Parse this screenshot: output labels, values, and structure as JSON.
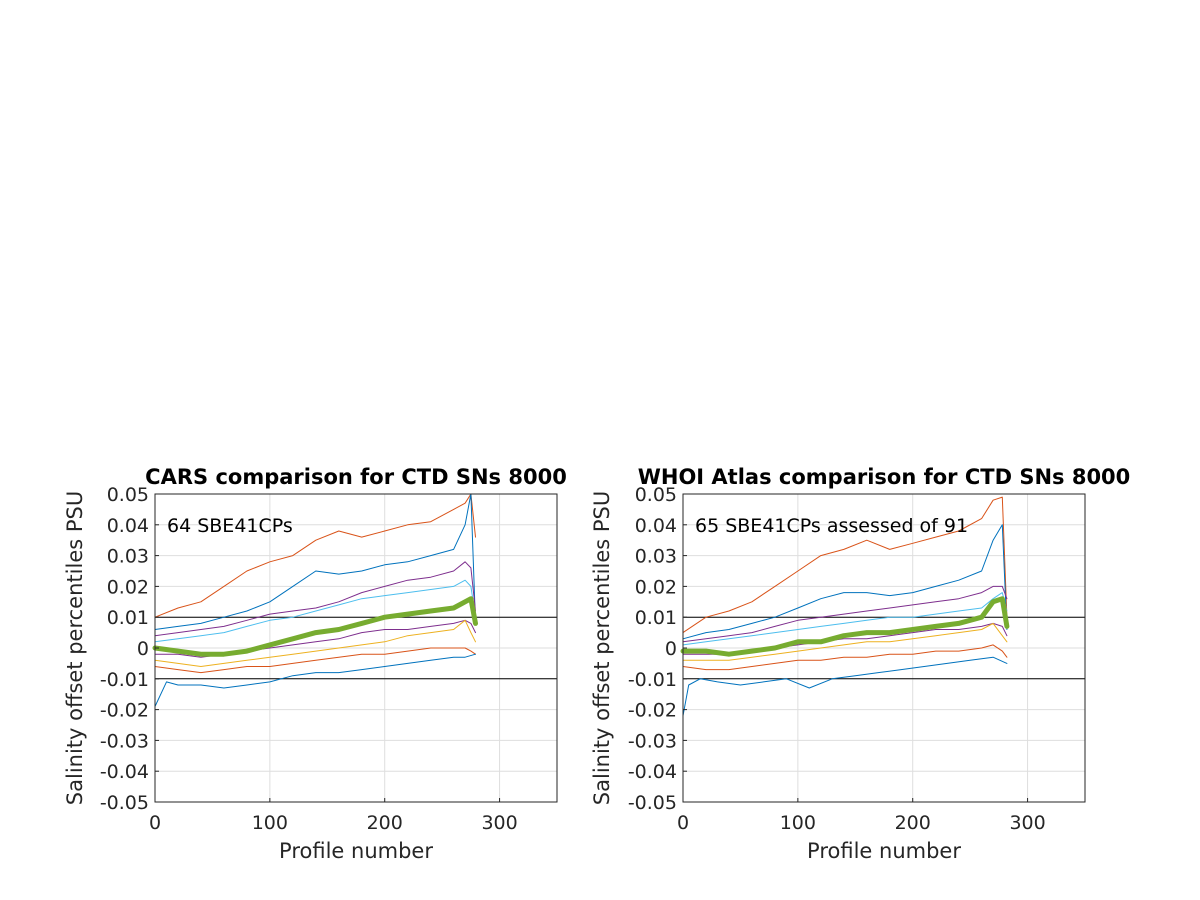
{
  "chart_data": [
    {
      "type": "line",
      "title": "CARS comparison for CTD SNs 8000",
      "annotation": "64 SBE41CPs",
      "xlabel": "Profile number",
      "ylabel": "Salinity offset percentiles PSU",
      "xlim": [
        0,
        350
      ],
      "ylim": [
        -0.05,
        0.05
      ],
      "xticks": [
        0,
        100,
        200,
        300
      ],
      "xtick_labels": [
        "0",
        "100",
        "200",
        "300"
      ],
      "yticks": [
        -0.05,
        -0.04,
        -0.03,
        -0.02,
        -0.01,
        0,
        0.01,
        0.02,
        0.03,
        0.04,
        0.05
      ],
      "ytick_labels": [
        "-0.05",
        "-0.04",
        "-0.03",
        "-0.02",
        "-0.01",
        "0",
        "0.01",
        "0.02",
        "0.03",
        "0.04",
        "0.05"
      ],
      "grid": true,
      "reference_lines": [
        0.01,
        -0.01
      ],
      "series": [
        {
          "color": "#D95319",
          "width": 1,
          "x": [
            0,
            20,
            40,
            60,
            80,
            100,
            120,
            140,
            160,
            180,
            200,
            220,
            240,
            260,
            270,
            275,
            279
          ],
          "y": [
            0.01,
            0.013,
            0.015,
            0.02,
            0.025,
            0.028,
            0.03,
            0.035,
            0.038,
            0.036,
            0.038,
            0.04,
            0.041,
            0.045,
            0.047,
            0.05,
            0.036
          ]
        },
        {
          "color": "#0072BD",
          "width": 1,
          "x": [
            0,
            20,
            40,
            60,
            80,
            100,
            120,
            140,
            160,
            180,
            200,
            220,
            240,
            260,
            270,
            275,
            279
          ],
          "y": [
            0.006,
            0.007,
            0.008,
            0.01,
            0.012,
            0.015,
            0.02,
            0.025,
            0.024,
            0.025,
            0.027,
            0.028,
            0.03,
            0.032,
            0.04,
            0.05,
            0.008
          ]
        },
        {
          "color": "#7E2F8E",
          "width": 1,
          "x": [
            0,
            20,
            40,
            60,
            80,
            100,
            120,
            140,
            160,
            180,
            200,
            220,
            240,
            260,
            270,
            275,
            279
          ],
          "y": [
            0.004,
            0.005,
            0.006,
            0.007,
            0.009,
            0.011,
            0.012,
            0.013,
            0.015,
            0.018,
            0.02,
            0.022,
            0.023,
            0.025,
            0.028,
            0.026,
            0.012
          ]
        },
        {
          "color": "#4DBEEE",
          "width": 1,
          "x": [
            0,
            20,
            40,
            60,
            80,
            100,
            120,
            140,
            160,
            180,
            200,
            220,
            240,
            260,
            270,
            275,
            279
          ],
          "y": [
            0.002,
            0.003,
            0.004,
            0.005,
            0.007,
            0.009,
            0.01,
            0.012,
            0.014,
            0.016,
            0.017,
            0.018,
            0.019,
            0.02,
            0.022,
            0.02,
            0.01
          ]
        },
        {
          "color": "#7E2F8E",
          "width": 1,
          "x": [
            0,
            20,
            40,
            60,
            80,
            100,
            120,
            140,
            160,
            180,
            200,
            220,
            240,
            260,
            270,
            275,
            279
          ],
          "y": [
            -0.002,
            -0.002,
            -0.003,
            -0.002,
            -0.001,
            0,
            0.001,
            0.002,
            0.003,
            0.005,
            0.006,
            0.006,
            0.007,
            0.008,
            0.009,
            0.008,
            0.005
          ]
        },
        {
          "color": "#EDB120",
          "width": 1,
          "x": [
            0,
            20,
            40,
            60,
            80,
            100,
            120,
            140,
            160,
            180,
            200,
            220,
            240,
            260,
            270,
            275,
            279
          ],
          "y": [
            -0.004,
            -0.005,
            -0.006,
            -0.005,
            -0.004,
            -0.003,
            -0.002,
            -0.001,
            0,
            0.001,
            0.002,
            0.004,
            0.005,
            0.006,
            0.009,
            0.005,
            0.002
          ]
        },
        {
          "color": "#D95319",
          "width": 1,
          "x": [
            0,
            20,
            40,
            60,
            80,
            100,
            120,
            140,
            160,
            180,
            200,
            220,
            240,
            260,
            270,
            275,
            279
          ],
          "y": [
            -0.006,
            -0.007,
            -0.008,
            -0.007,
            -0.006,
            -0.006,
            -0.005,
            -0.004,
            -0.003,
            -0.002,
            -0.002,
            -0.001,
            0,
            0,
            0,
            -0.001,
            -0.002
          ]
        },
        {
          "color": "#0072BD",
          "width": 1,
          "x": [
            0,
            10,
            20,
            40,
            60,
            80,
            100,
            120,
            140,
            160,
            180,
            200,
            220,
            240,
            260,
            270,
            279
          ],
          "y": [
            -0.019,
            -0.011,
            -0.012,
            -0.012,
            -0.013,
            -0.012,
            -0.011,
            -0.009,
            -0.008,
            -0.008,
            -0.007,
            -0.006,
            -0.005,
            -0.004,
            -0.003,
            -0.003,
            -0.002
          ]
        },
        {
          "color": "#77AC30",
          "width": 5,
          "x": [
            0,
            20,
            40,
            60,
            80,
            100,
            120,
            140,
            160,
            180,
            200,
            220,
            240,
            260,
            270,
            275,
            279
          ],
          "y": [
            0,
            -0.001,
            -0.002,
            -0.002,
            -0.001,
            0.001,
            0.003,
            0.005,
            0.006,
            0.008,
            0.01,
            0.011,
            0.012,
            0.013,
            0.015,
            0.016,
            0.008
          ]
        }
      ]
    },
    {
      "type": "line",
      "title": "WHOI Atlas comparison for CTD SNs 8000",
      "annotation": "65 SBE41CPs assessed of 91",
      "xlabel": "Profile number",
      "ylabel": "Salinity offset percentiles PSU",
      "xlim": [
        0,
        350
      ],
      "ylim": [
        -0.05,
        0.05
      ],
      "xticks": [
        0,
        100,
        200,
        300
      ],
      "xtick_labels": [
        "0",
        "100",
        "200",
        "300"
      ],
      "yticks": [
        -0.05,
        -0.04,
        -0.03,
        -0.02,
        -0.01,
        0,
        0.01,
        0.02,
        0.03,
        0.04,
        0.05
      ],
      "ytick_labels": [
        "-0.05",
        "-0.04",
        "-0.03",
        "-0.02",
        "-0.01",
        "0",
        "0.01",
        "0.02",
        "0.03",
        "0.04",
        "0.05"
      ],
      "grid": true,
      "reference_lines": [
        0.01,
        -0.01
      ],
      "series": [
        {
          "color": "#D95319",
          "width": 1,
          "x": [
            0,
            20,
            40,
            60,
            80,
            100,
            120,
            140,
            160,
            180,
            200,
            220,
            240,
            260,
            270,
            278,
            282
          ],
          "y": [
            0.005,
            0.01,
            0.012,
            0.015,
            0.02,
            0.025,
            0.03,
            0.032,
            0.035,
            0.032,
            0.034,
            0.036,
            0.038,
            0.042,
            0.048,
            0.049,
            0.01
          ]
        },
        {
          "color": "#0072BD",
          "width": 1,
          "x": [
            0,
            20,
            40,
            60,
            80,
            100,
            120,
            140,
            160,
            180,
            200,
            220,
            240,
            260,
            270,
            278,
            282
          ],
          "y": [
            0.003,
            0.005,
            0.006,
            0.008,
            0.01,
            0.013,
            0.016,
            0.018,
            0.018,
            0.017,
            0.018,
            0.02,
            0.022,
            0.025,
            0.035,
            0.04,
            0.006
          ]
        },
        {
          "color": "#7E2F8E",
          "width": 1,
          "x": [
            0,
            20,
            40,
            60,
            80,
            100,
            120,
            140,
            160,
            180,
            200,
            220,
            240,
            260,
            270,
            278,
            282
          ],
          "y": [
            0.002,
            0.003,
            0.004,
            0.005,
            0.007,
            0.009,
            0.01,
            0.011,
            0.012,
            0.013,
            0.014,
            0.015,
            0.016,
            0.018,
            0.02,
            0.02,
            0.016
          ]
        },
        {
          "color": "#4DBEEE",
          "width": 1,
          "x": [
            0,
            20,
            40,
            60,
            80,
            100,
            120,
            140,
            160,
            180,
            200,
            220,
            240,
            260,
            270,
            278,
            282
          ],
          "y": [
            0.001,
            0.002,
            0.003,
            0.004,
            0.005,
            0.006,
            0.007,
            0.008,
            0.009,
            0.01,
            0.01,
            0.011,
            0.012,
            0.013,
            0.016,
            0.018,
            0.012
          ]
        },
        {
          "color": "#7E2F8E",
          "width": 1,
          "x": [
            0,
            20,
            40,
            60,
            80,
            100,
            120,
            140,
            160,
            180,
            200,
            220,
            240,
            260,
            270,
            278,
            282
          ],
          "y": [
            -0.002,
            -0.002,
            -0.002,
            -0.001,
            0,
            0.001,
            0.002,
            0.003,
            0.003,
            0.004,
            0.005,
            0.006,
            0.006,
            0.007,
            0.008,
            0.007,
            0.004
          ]
        },
        {
          "color": "#EDB120",
          "width": 1,
          "x": [
            0,
            20,
            40,
            60,
            80,
            100,
            120,
            140,
            160,
            180,
            200,
            220,
            240,
            260,
            270,
            278,
            282
          ],
          "y": [
            -0.004,
            -0.004,
            -0.004,
            -0.003,
            -0.002,
            -0.001,
            0,
            0.001,
            0.002,
            0.002,
            0.003,
            0.004,
            0.005,
            0.006,
            0.008,
            0.004,
            0.002
          ]
        },
        {
          "color": "#D95319",
          "width": 1,
          "x": [
            0,
            20,
            40,
            60,
            80,
            100,
            120,
            140,
            160,
            180,
            200,
            220,
            240,
            260,
            270,
            278,
            282
          ],
          "y": [
            -0.006,
            -0.007,
            -0.007,
            -0.006,
            -0.005,
            -0.004,
            -0.004,
            -0.003,
            -0.003,
            -0.002,
            -0.002,
            -0.001,
            -0.001,
            0,
            0.001,
            -0.001,
            -0.003
          ]
        },
        {
          "color": "#0072BD",
          "width": 1,
          "x": [
            0,
            5,
            15,
            30,
            50,
            70,
            90,
            110,
            130,
            150,
            170,
            190,
            210,
            230,
            250,
            270,
            282
          ],
          "y": [
            -0.022,
            -0.012,
            -0.01,
            -0.011,
            -0.012,
            -0.011,
            -0.01,
            -0.013,
            -0.01,
            -0.009,
            -0.008,
            -0.007,
            -0.006,
            -0.005,
            -0.004,
            -0.003,
            -0.005
          ]
        },
        {
          "color": "#77AC30",
          "width": 5,
          "x": [
            0,
            20,
            40,
            60,
            80,
            100,
            120,
            140,
            160,
            180,
            200,
            220,
            240,
            260,
            270,
            278,
            282
          ],
          "y": [
            -0.001,
            -0.001,
            -0.002,
            -0.001,
            0,
            0.002,
            0.002,
            0.004,
            0.005,
            0.005,
            0.006,
            0.007,
            0.008,
            0.01,
            0.015,
            0.016,
            0.007
          ]
        }
      ]
    }
  ]
}
